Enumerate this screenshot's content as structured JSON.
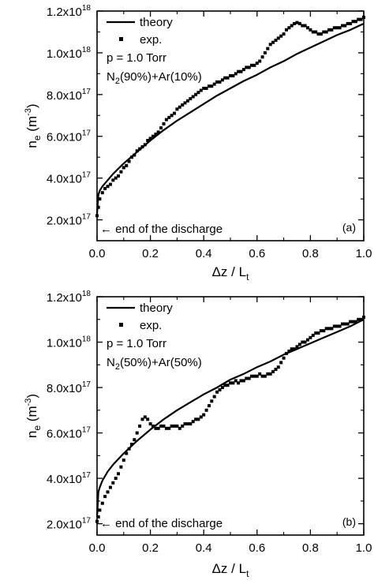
{
  "chart_data": [
    {
      "type": "scatter",
      "panel_label": "(a)",
      "xlabel": {
        "base": "Δz / L",
        "sub": "t"
      },
      "ylabel": {
        "base": "n",
        "base_sub": "e",
        "unit_open": "(m",
        "unit_sup": "-3",
        "unit_close": ")"
      },
      "xlim": [
        0,
        1.0
      ],
      "ylim": [
        1e+17,
        1.2e+18
      ],
      "x_ticks": [
        {
          "v": 0.0,
          "label": "0.0"
        },
        {
          "v": 0.2,
          "label": "0.2"
        },
        {
          "v": 0.4,
          "label": "0.4"
        },
        {
          "v": 0.6,
          "label": "0.6"
        },
        {
          "v": 0.8,
          "label": "0.8"
        },
        {
          "v": 1.0,
          "label": "1.0"
        }
      ],
      "y_ticks": [
        {
          "v": 2e+17,
          "mant": "2.0x10",
          "exp": "17"
        },
        {
          "v": 4e+17,
          "mant": "4.0x10",
          "exp": "17"
        },
        {
          "v": 6e+17,
          "mant": "6.0x10",
          "exp": "17"
        },
        {
          "v": 8e+17,
          "mant": "8.0x10",
          "exp": "17"
        },
        {
          "v": 1e+18,
          "mant": "1.0x10",
          "exp": "18"
        },
        {
          "v": 1.2e+18,
          "mant": "1.2x10",
          "exp": "18"
        }
      ],
      "legend": {
        "theory": "theory",
        "exp": "exp.",
        "pressure": "p = 1.0 Torr",
        "gas": {
          "a": "N",
          "sub": "2",
          "b": "(90%)+Ar(10%)"
        }
      },
      "annotation": "← end of the discharge",
      "series": [
        {
          "name": "theory",
          "kind": "line",
          "x": [
            0.0,
            0.005,
            0.01,
            0.02,
            0.04,
            0.06,
            0.08,
            0.1,
            0.15,
            0.2,
            0.25,
            0.3,
            0.35,
            0.4,
            0.45,
            0.5,
            0.55,
            0.6,
            0.65,
            0.7,
            0.75,
            0.8,
            0.85,
            0.9,
            0.95,
            1.0
          ],
          "y": [
            2.3e+17,
            3.2e+17,
            3.4e+17,
            3.6e+17,
            3.9e+17,
            4.2e+17,
            4.45e+17,
            4.7e+17,
            5.25e+17,
            5.8e+17,
            6.3e+17,
            6.75e+17,
            7.15e+17,
            7.55e+17,
            7.95e+17,
            8.3e+17,
            8.65e+17,
            8.95e+17,
            9.3e+17,
            9.6e+17,
            9.95e+17,
            1.025e+18,
            1.055e+18,
            1.085e+18,
            1.11e+18,
            1.14e+18
          ]
        },
        {
          "name": "exp.",
          "kind": "scatter",
          "x": [
            0.0,
            0.005,
            0.01,
            0.02,
            0.03,
            0.04,
            0.05,
            0.06,
            0.07,
            0.08,
            0.09,
            0.1,
            0.11,
            0.12,
            0.13,
            0.14,
            0.15,
            0.16,
            0.17,
            0.18,
            0.19,
            0.2,
            0.21,
            0.22,
            0.23,
            0.24,
            0.25,
            0.26,
            0.27,
            0.28,
            0.29,
            0.3,
            0.31,
            0.32,
            0.33,
            0.34,
            0.35,
            0.36,
            0.37,
            0.38,
            0.39,
            0.4,
            0.41,
            0.42,
            0.43,
            0.44,
            0.45,
            0.46,
            0.47,
            0.48,
            0.49,
            0.5,
            0.51,
            0.52,
            0.53,
            0.54,
            0.55,
            0.56,
            0.57,
            0.58,
            0.59,
            0.6,
            0.61,
            0.62,
            0.63,
            0.64,
            0.65,
            0.66,
            0.67,
            0.68,
            0.69,
            0.7,
            0.71,
            0.72,
            0.73,
            0.74,
            0.75,
            0.76,
            0.77,
            0.78,
            0.79,
            0.8,
            0.81,
            0.82,
            0.83,
            0.84,
            0.85,
            0.86,
            0.87,
            0.88,
            0.89,
            0.9,
            0.91,
            0.92,
            0.93,
            0.94,
            0.95,
            0.96,
            0.97,
            0.98,
            0.99,
            1.0
          ],
          "y": [
            2.2e+17,
            2.6e+17,
            3e+17,
            3.3e+17,
            3.5e+17,
            3.6e+17,
            3.7e+17,
            3.9e+17,
            4e+17,
            4.1e+17,
            4.3e+17,
            4.5e+17,
            4.6e+17,
            4.8e+17,
            5e+17,
            5.1e+17,
            5.3e+17,
            5.4e+17,
            5.5e+17,
            5.6e+17,
            5.8e+17,
            5.9e+17,
            6e+17,
            6.1e+17,
            6.2e+17,
            6.4e+17,
            6.6e+17,
            6.8e+17,
            6.9e+17,
            7e+17,
            7.1e+17,
            7.3e+17,
            7.4e+17,
            7.5e+17,
            7.6e+17,
            7.7e+17,
            7.8e+17,
            7.9e+17,
            8e+17,
            8.1e+17,
            8.2e+17,
            8.3e+17,
            8.3e+17,
            8.4e+17,
            8.4e+17,
            8.5e+17,
            8.6e+17,
            8.6e+17,
            8.7e+17,
            8.8e+17,
            8.8e+17,
            8.9e+17,
            8.9e+17,
            9e+17,
            9.1e+17,
            9.1e+17,
            9.2e+17,
            9.3e+17,
            9.3e+17,
            9.4e+17,
            9.4e+17,
            9.5e+17,
            9.6e+17,
            9.8e+17,
            1e+18,
            1.02e+18,
            1.04e+18,
            1.05e+18,
            1.06e+18,
            1.07e+18,
            1.08e+18,
            1.09e+18,
            1.11e+18,
            1.12e+18,
            1.13e+18,
            1.14e+18,
            1.145e+18,
            1.14e+18,
            1.13e+18,
            1.13e+18,
            1.12e+18,
            1.11e+18,
            1.1e+18,
            1.1e+18,
            1.09e+18,
            1.09e+18,
            1.1e+18,
            1.1e+18,
            1.11e+18,
            1.11e+18,
            1.12e+18,
            1.12e+18,
            1.12e+18,
            1.13e+18,
            1.13e+18,
            1.14e+18,
            1.14e+18,
            1.15e+18,
            1.15e+18,
            1.16e+18,
            1.16e+18,
            1.17e+18
          ]
        }
      ]
    },
    {
      "type": "scatter",
      "panel_label": "(b)",
      "xlabel": {
        "base": "Δz / L",
        "sub": "t"
      },
      "ylabel": {
        "base": "n",
        "base_sub": "e",
        "unit_open": "(m",
        "unit_sup": "-3",
        "unit_close": ")"
      },
      "xlim": [
        0,
        1.0
      ],
      "ylim": [
        1.5e+17,
        1.2e+18
      ],
      "x_ticks": [
        {
          "v": 0.0,
          "label": "0.0"
        },
        {
          "v": 0.2,
          "label": "0.2"
        },
        {
          "v": 0.4,
          "label": "0.4"
        },
        {
          "v": 0.6,
          "label": "0.6"
        },
        {
          "v": 0.8,
          "label": "0.8"
        },
        {
          "v": 1.0,
          "label": "1.0"
        }
      ],
      "y_ticks": [
        {
          "v": 2e+17,
          "mant": "2.0x10",
          "exp": "17"
        },
        {
          "v": 4e+17,
          "mant": "4.0x10",
          "exp": "17"
        },
        {
          "v": 6e+17,
          "mant": "6.0x10",
          "exp": "17"
        },
        {
          "v": 8e+17,
          "mant": "8.0x10",
          "exp": "17"
        },
        {
          "v": 1e+18,
          "mant": "1.0x10",
          "exp": "18"
        },
        {
          "v": 1.2e+18,
          "mant": "1.2x10",
          "exp": "18"
        }
      ],
      "legend": {
        "theory": "theory",
        "exp": "exp.",
        "pressure": "p = 1.0 Torr",
        "gas": {
          "a": "N",
          "sub": "2",
          "b": "(50%)+Ar(50%)"
        }
      },
      "annotation": "← end of the discharge",
      "series": [
        {
          "name": "theory",
          "kind": "line",
          "x": [
            0.0,
            0.005,
            0.01,
            0.02,
            0.04,
            0.06,
            0.08,
            0.1,
            0.15,
            0.2,
            0.25,
            0.3,
            0.35,
            0.4,
            0.45,
            0.5,
            0.55,
            0.6,
            0.65,
            0.7,
            0.75,
            0.8,
            0.85,
            0.9,
            0.95,
            1.0
          ],
          "y": [
            2.3e+17,
            3.4e+17,
            3.6e+17,
            3.9e+17,
            4.3e+17,
            4.6e+17,
            4.85e+17,
            5.1e+17,
            5.65e+17,
            6.15e+17,
            6.6e+17,
            7e+17,
            7.35e+17,
            7.7e+17,
            8e+17,
            8.35e+17,
            8.6e+17,
            8.9e+17,
            9.15e+17,
            9.45e+17,
            9.7e+17,
            9.95e+17,
            1.02e+18,
            1.045e+18,
            1.07e+18,
            1.1e+18
          ]
        },
        {
          "name": "exp.",
          "kind": "scatter",
          "x": [
            0.0,
            0.005,
            0.01,
            0.02,
            0.03,
            0.04,
            0.05,
            0.06,
            0.07,
            0.08,
            0.09,
            0.1,
            0.11,
            0.12,
            0.13,
            0.14,
            0.15,
            0.16,
            0.17,
            0.18,
            0.19,
            0.2,
            0.21,
            0.22,
            0.23,
            0.24,
            0.25,
            0.26,
            0.27,
            0.28,
            0.29,
            0.3,
            0.31,
            0.32,
            0.33,
            0.34,
            0.35,
            0.36,
            0.37,
            0.38,
            0.39,
            0.4,
            0.41,
            0.42,
            0.43,
            0.44,
            0.45,
            0.46,
            0.47,
            0.48,
            0.49,
            0.5,
            0.51,
            0.52,
            0.53,
            0.54,
            0.55,
            0.56,
            0.57,
            0.58,
            0.59,
            0.6,
            0.61,
            0.62,
            0.63,
            0.64,
            0.65,
            0.66,
            0.67,
            0.68,
            0.69,
            0.7,
            0.71,
            0.72,
            0.73,
            0.74,
            0.75,
            0.76,
            0.77,
            0.78,
            0.79,
            0.8,
            0.81,
            0.82,
            0.83,
            0.84,
            0.85,
            0.86,
            0.87,
            0.88,
            0.89,
            0.9,
            0.91,
            0.92,
            0.93,
            0.94,
            0.95,
            0.96,
            0.97,
            0.98,
            0.99,
            1.0
          ],
          "y": [
            2.1e+17,
            2.3e+17,
            2.6e+17,
            2.9e+17,
            3.2e+17,
            3.4e+17,
            3.6e+17,
            3.8e+17,
            4e+17,
            4.2e+17,
            4.5e+17,
            4.8e+17,
            5.1e+17,
            5.3e+17,
            5.5e+17,
            5.7e+17,
            6e+17,
            6.3e+17,
            6.6e+17,
            6.7e+17,
            6.6e+17,
            6.4e+17,
            6.3e+17,
            6.2e+17,
            6.2e+17,
            6.3e+17,
            6.3e+17,
            6.2e+17,
            6.2e+17,
            6.3e+17,
            6.3e+17,
            6.3e+17,
            6.2e+17,
            6.3e+17,
            6.4e+17,
            6.4e+17,
            6.4e+17,
            6.5e+17,
            6.6e+17,
            6.6e+17,
            6.7e+17,
            6.8e+17,
            7e+17,
            7.2e+17,
            7.4e+17,
            7.6e+17,
            7.8e+17,
            7.9e+17,
            8e+17,
            8.1e+17,
            8.1e+17,
            8.2e+17,
            8.2e+17,
            8.3e+17,
            8.2e+17,
            8.3e+17,
            8.3e+17,
            8.4e+17,
            8.4e+17,
            8.5e+17,
            8.5e+17,
            8.5e+17,
            8.6e+17,
            8.5e+17,
            8.5e+17,
            8.6e+17,
            8.6e+17,
            8.7e+17,
            8.8e+17,
            8.9e+17,
            9.1e+17,
            9.3e+17,
            9.5e+17,
            9.6e+17,
            9.7e+17,
            9.7e+17,
            9.8e+17,
            9.9e+17,
            1e+18,
            1e+18,
            1.01e+18,
            1.02e+18,
            1.03e+18,
            1.04e+18,
            1.04e+18,
            1.05e+18,
            1.05e+18,
            1.06e+18,
            1.06e+18,
            1.06e+18,
            1.07e+18,
            1.07e+18,
            1.07e+18,
            1.08e+18,
            1.08e+18,
            1.08e+18,
            1.09e+18,
            1.09e+18,
            1.09e+18,
            1.1e+18,
            1.1e+18,
            1.11e+18
          ]
        }
      ]
    }
  ]
}
